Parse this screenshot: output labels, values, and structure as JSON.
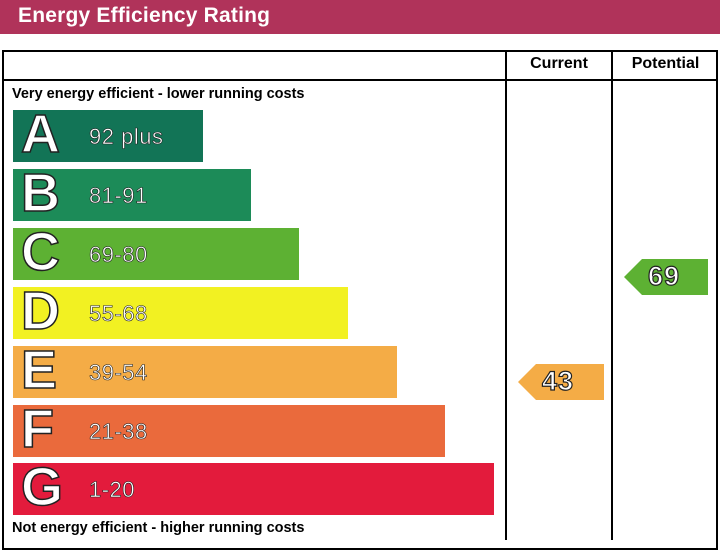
{
  "title": "Energy Efficiency Rating",
  "columns": {
    "current": "Current",
    "potential": "Potential"
  },
  "top_caption": "Very energy efficient - lower running costs",
  "bottom_caption": "Not energy efficient - higher running costs",
  "chart_data": {
    "type": "bar",
    "bands": [
      {
        "letter": "A",
        "range": "92 plus",
        "color": "#127456"
      },
      {
        "letter": "B",
        "range": "81-91",
        "color": "#1c8b58"
      },
      {
        "letter": "C",
        "range": "69-80",
        "color": "#5db133"
      },
      {
        "letter": "D",
        "range": "55-68",
        "color": "#f2f122"
      },
      {
        "letter": "E",
        "range": "39-54",
        "color": "#f4ac46"
      },
      {
        "letter": "F",
        "range": "21-38",
        "color": "#ea6a3c"
      },
      {
        "letter": "G",
        "range": "1-20",
        "color": "#e31b3c"
      }
    ],
    "current": {
      "value": "43",
      "band": "E",
      "color": "#f4ac46"
    },
    "potential": {
      "value": "69",
      "band": "C",
      "color": "#5db133"
    }
  }
}
